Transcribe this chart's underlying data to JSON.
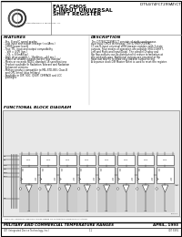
{
  "title_line1": "FAST CMOS",
  "title_line2": "8-INPUT UNIVERSAL",
  "title_line3": "SHIFT REGISTER",
  "title_right": "IDT54/74FCT299AT/CT",
  "bg_color": "#f0f0f0",
  "features_title": "FEATURES",
  "description_title": "DESCRIPTION",
  "features_lines": [
    "- 8to- 8 and C speed grades",
    "- Low input and output leakage (<±4Ana.)",
    "- CMOS power levels",
    "- True TTL input and output compatibility",
    "  - VIH = 4.0V (typ.)",
    "  - IOL = 8.0mA(typ.)",
    "- High drive outputs (- 15mA•on, −64 ma.)",
    "- Power off disable outputs permit 'bus monitor'",
    "- Meets or exceeds JEDEC standard 18 specifications",
    "- Product available in Radiation Tolerant and Radiation",
    "  Enhanced versions",
    "- Military product compatible to MIL-STD-883, Class B",
    "  and QPL listed (plus military)",
    "- Available in DIP, SOC, QSOP, CERPACK and LCC",
    "  packages"
  ],
  "desc_lines": [
    "The IDT74/FCT299AT,CT consists of eight synchronous",
    "dual input CMOS technology. The IDT54/FCT299AT,",
    "CT are 8-input universal shift/storage registers with 3-state",
    "outputs. Four modes of operation are possible (HOLD,SHIFT,",
    "Left and Right,and Input/Data). The parallel Display and",
    "flip flop outputs can be distributed to reduce termination at",
    "the packages pins. Additional outputs are provided at flip",
    "flops due and S0 to allow easy parallel output wiring.",
    "A separate clock DIR Master Reset is used to reset the register."
  ],
  "block_diagram_title": "FUNCTIONAL BLOCK DIAGRAM",
  "footer_catalog": "FOR FULL PRODUCT SPECIFICATIONS REFER TO STANDARD PRODUCTS CATALOG",
  "footer_mil": "MILITARY AND COMMERCIAL TEMPERATURE RANGES",
  "footer_date": "APRIL, 1993",
  "footer_company": "IDT (Integrated Device Technology, Inc.)",
  "footer_page": "1-1",
  "footer_docnum": "IDT 5991",
  "logo_text": "Integrated Device Technology, Inc.",
  "n_cells": 8,
  "cell_color": "#e8e8e8",
  "diagram_bg": "#d8d8d8"
}
